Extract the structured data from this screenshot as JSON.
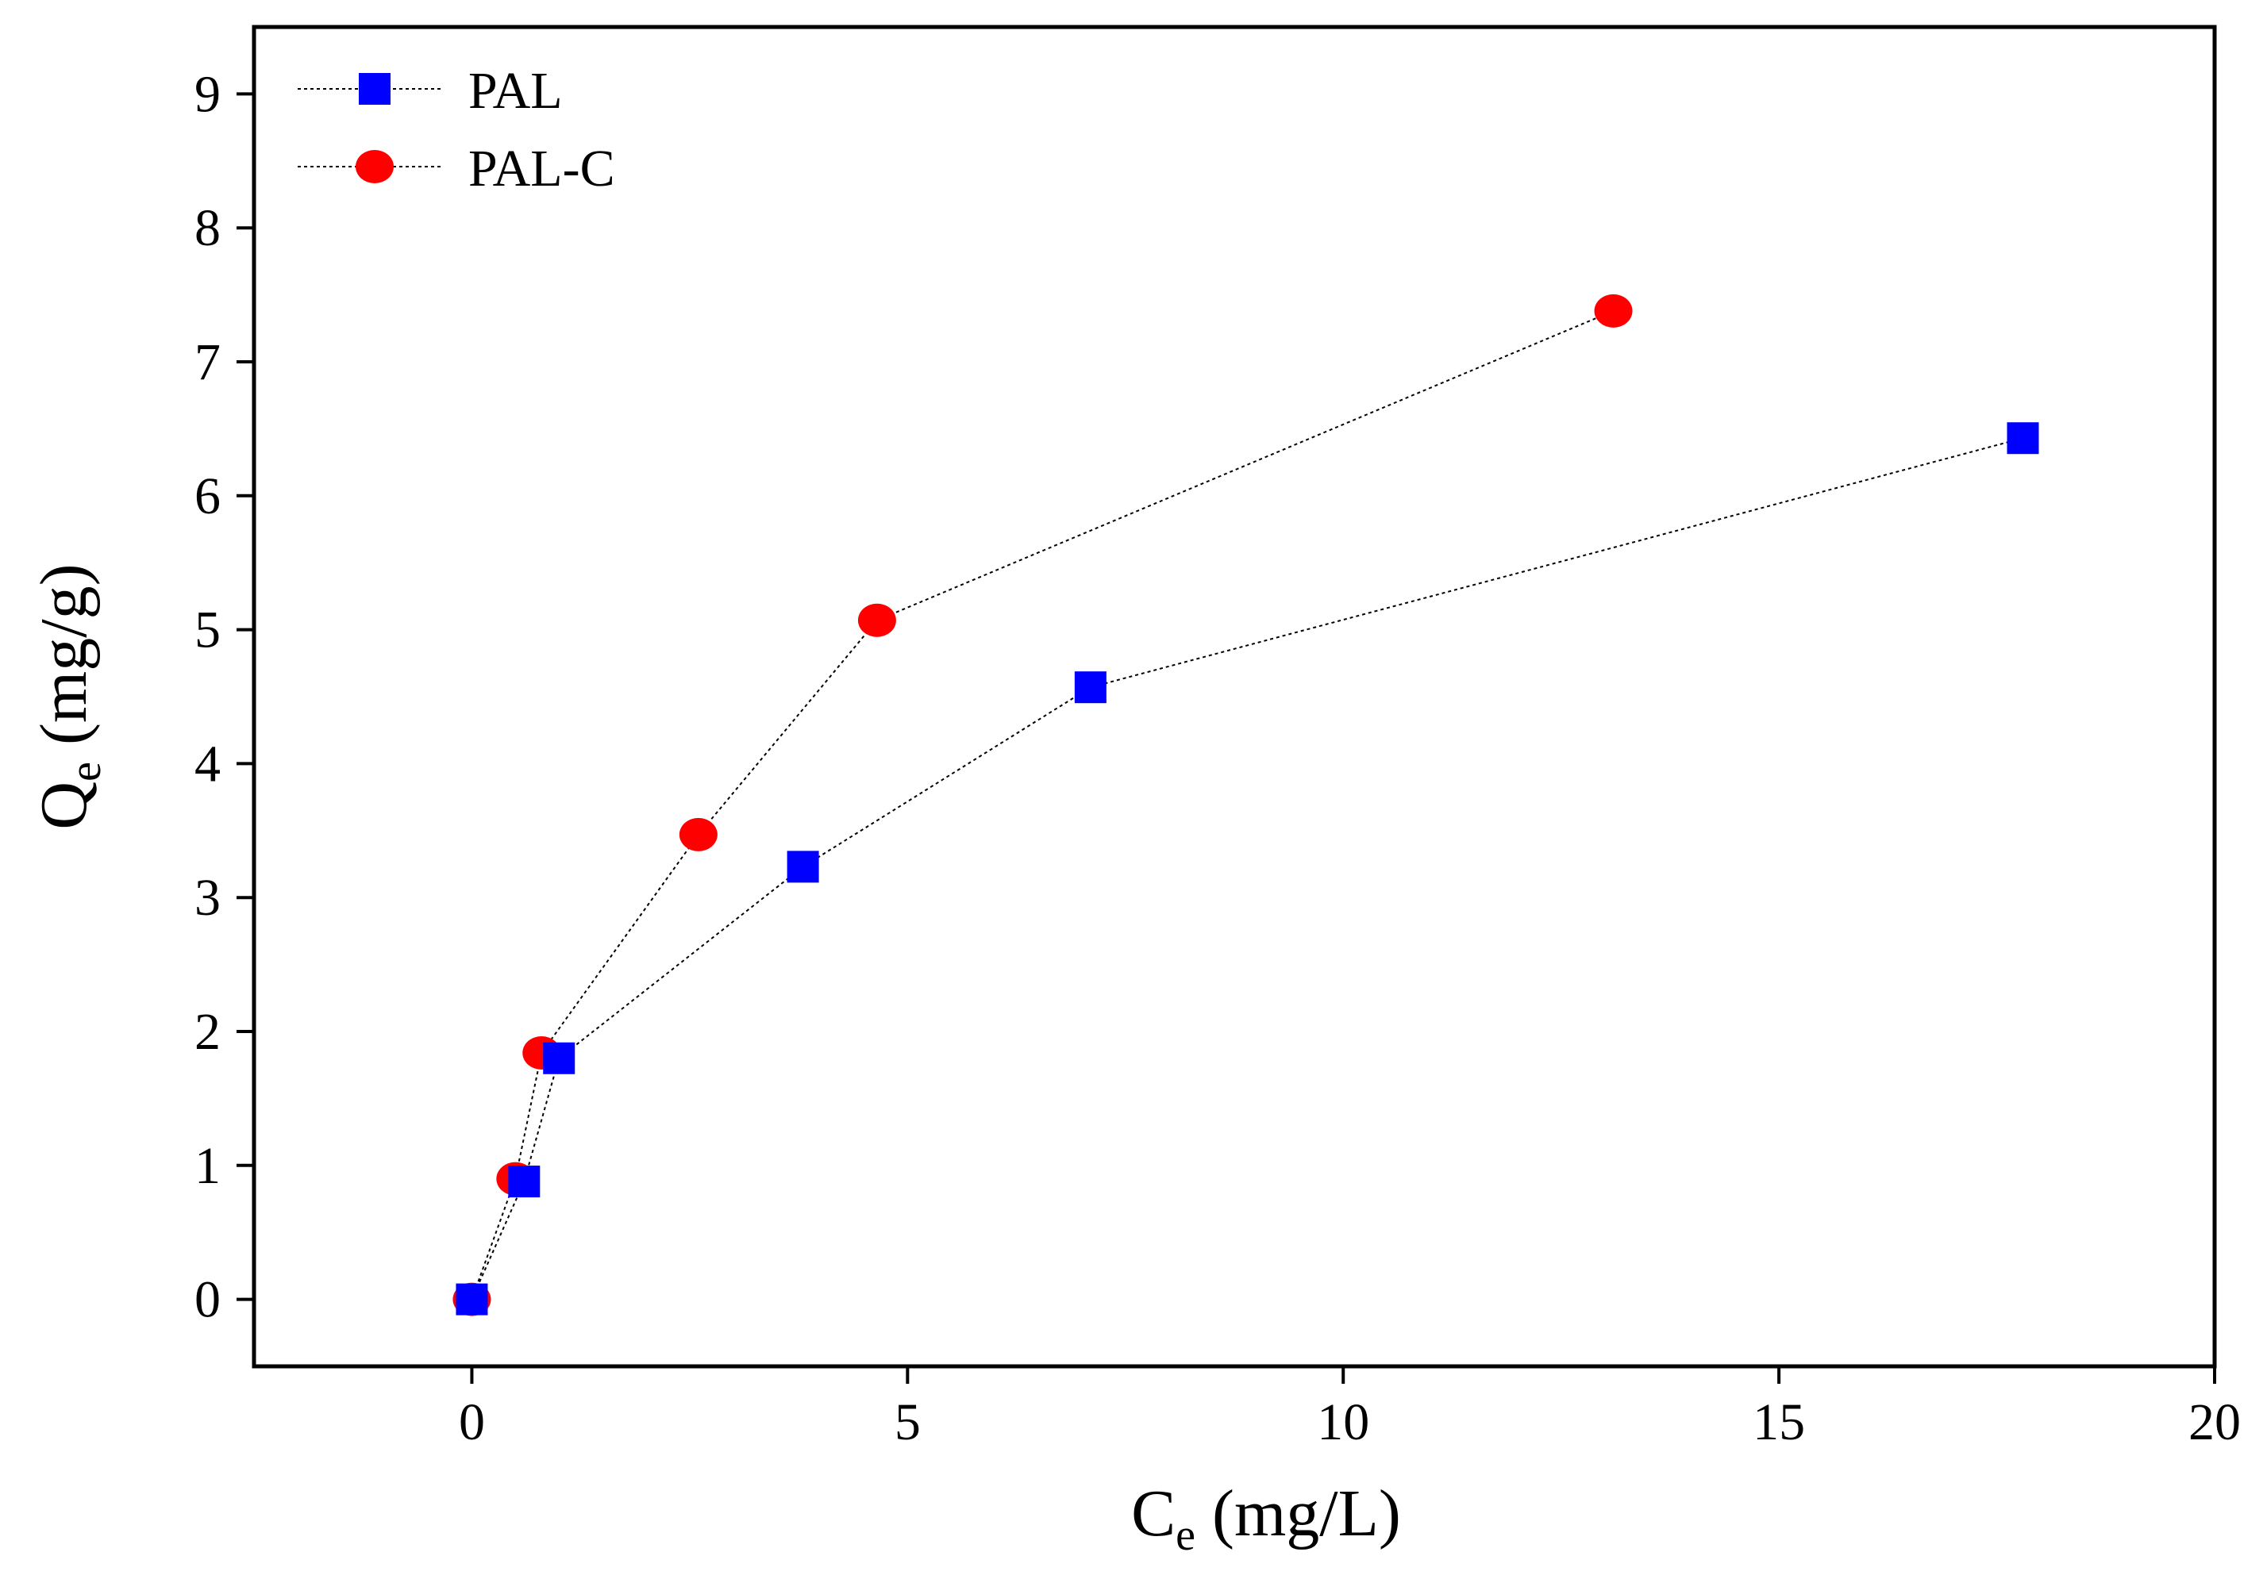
{
  "chart_data": {
    "type": "scatter",
    "title": "",
    "xlabel": {
      "main": "C",
      "sub": "e",
      "unit": " (mg/L)"
    },
    "ylabel": {
      "main": "Q",
      "sub": "e",
      "unit": " (mg/g)"
    },
    "xlim": [
      -2.5,
      20
    ],
    "ylim": [
      -0.5,
      9.5
    ],
    "xticks": [
      0,
      5,
      10,
      15,
      20
    ],
    "yticks": [
      0,
      1,
      2,
      3,
      4,
      5,
      6,
      7,
      8,
      9
    ],
    "grid": false,
    "legend_position": "top-left",
    "series": [
      {
        "name": "PAL",
        "marker": "square",
        "color": "#0000ff",
        "line_style": "dotted",
        "x": [
          0,
          0.6,
          1.0,
          3.8,
          7.1,
          17.8
        ],
        "y": [
          0,
          0.88,
          1.8,
          3.23,
          4.57,
          6.43
        ]
      },
      {
        "name": "PAL-C",
        "marker": "circle",
        "color": "#ff0000",
        "line_style": "dotted",
        "x": [
          0,
          0.5,
          0.8,
          2.6,
          4.65,
          13.1
        ],
        "y": [
          0,
          0.9,
          1.84,
          3.47,
          5.07,
          7.38
        ]
      }
    ]
  }
}
